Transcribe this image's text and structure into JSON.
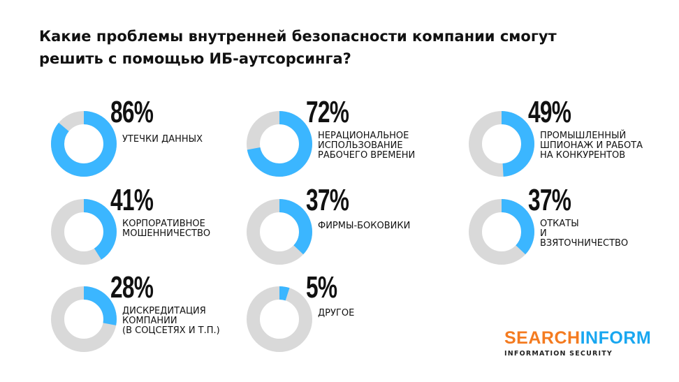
{
  "title": "Какие проблемы внутренней безопасности компании смогут решить с помощью ИБ-аутсорсинга?",
  "colors": {
    "filled": "#3bb6ff",
    "remainder": "#d9d9d9",
    "logo_orange": "#f47b20",
    "logo_blue": "#19a7f0"
  },
  "chart_data": {
    "type": "pie",
    "variant": "donut-grid",
    "title": "Какие проблемы внутренней безопасности компании смогут решить с помощью ИБ-аутсорсинга?",
    "items": [
      {
        "value": 86,
        "value_label": "86%",
        "label": "Утечки данных"
      },
      {
        "value": 72,
        "value_label": "72%",
        "label": "Нерациональное использование рабочего времени"
      },
      {
        "value": 49,
        "value_label": "49%",
        "label": "Промышленный шпионаж и работа на конкурентов"
      },
      {
        "value": 41,
        "value_label": "41%",
        "label": "Корпоративное мошенничество"
      },
      {
        "value": 37,
        "value_label": "37%",
        "label": "Фирмы-боковики"
      },
      {
        "value": 37,
        "value_label": "37%",
        "label": "Откаты и взяточничество"
      },
      {
        "value": 28,
        "value_label": "28%",
        "label": "Дискредитация компании (в соцсетях и т.п.)"
      },
      {
        "value": 5,
        "value_label": "5%",
        "label": "Другое"
      }
    ]
  },
  "logo": {
    "part1": "SEARCH",
    "part2": "INFORM",
    "tagline": "INFORMATION SECURITY"
  }
}
